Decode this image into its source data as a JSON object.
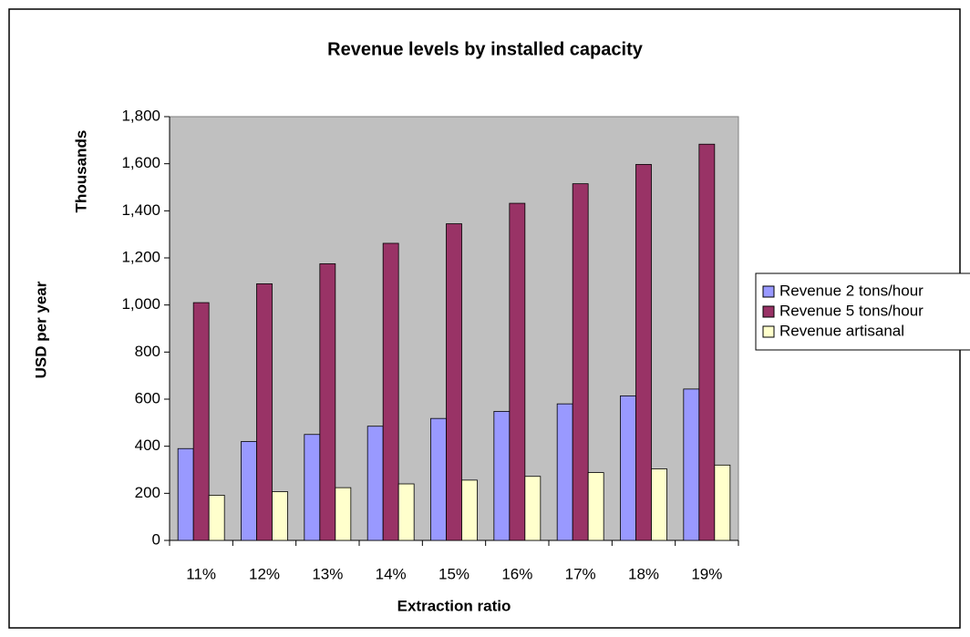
{
  "chart_data": {
    "type": "bar",
    "title": "Revenue levels by installed capacity",
    "y_label_units": "Thousands",
    "y_label": "USD per year",
    "x_label": "Extraction ratio",
    "categories": [
      "11%",
      "12%",
      "13%",
      "14%",
      "15%",
      "16%",
      "17%",
      "18%",
      "19%"
    ],
    "series": [
      {
        "name": "Revenue 2 tons/hour",
        "color": "#9999ff",
        "values": [
          390,
          420,
          450,
          485,
          518,
          548,
          580,
          614,
          643
        ]
      },
      {
        "name": "Revenue 5 tons/hour",
        "color": "#993366",
        "values": [
          1010,
          1090,
          1175,
          1262,
          1345,
          1432,
          1515,
          1597,
          1683
        ]
      },
      {
        "name": "Revenue artisanal",
        "color": "#ffffcc",
        "values": [
          192,
          207,
          224,
          240,
          256,
          272,
          288,
          304,
          320
        ]
      }
    ],
    "ylim": [
      0,
      1800
    ],
    "yticks": [
      0,
      200,
      400,
      600,
      800,
      {
        "value": 1000,
        "label": "1,000"
      },
      {
        "value": 1200,
        "label": "1,200"
      },
      {
        "value": 1400,
        "label": "1,400"
      },
      {
        "value": 1600,
        "label": "1,600"
      },
      {
        "value": 1800,
        "label": "1,800"
      }
    ],
    "grid": false,
    "legend": "right",
    "plot_background": "#c0c0c0"
  }
}
